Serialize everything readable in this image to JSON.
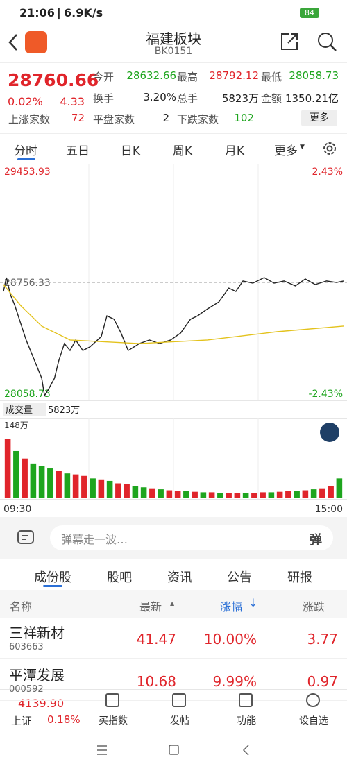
{
  "status_bar": {
    "time": "21:06",
    "speed": "6.9K/s",
    "battery": "84"
  },
  "header": {
    "title": "福建板块",
    "code": "BK0151"
  },
  "quote": {
    "price": "28760.66",
    "change_pct": "0.02%",
    "change": "4.33",
    "rows": [
      [
        {
          "label": "今开",
          "value": "28632.66"
        },
        {
          "label": "最高",
          "value": "28792.12"
        },
        {
          "label": "最低",
          "value": "28058.73"
        }
      ],
      [
        {
          "label": "换手",
          "value": "3.20%"
        },
        {
          "label": "总手",
          "value": "5823万"
        },
        {
          "label": "金额",
          "value": "1350.21亿"
        }
      ]
    ],
    "breadth": [
      {
        "label": "上涨家数",
        "value": "72"
      },
      {
        "label": "平盘家数",
        "value": "2"
      },
      {
        "label": "下跌家数",
        "value": "102"
      }
    ],
    "more": "更多"
  },
  "chart_tabs": [
    "分时",
    "五日",
    "日K",
    "周K",
    "月K",
    "更多"
  ],
  "chart_data": [
    {
      "type": "line",
      "xlim": [
        0,
        240
      ],
      "ylim": [
        28058.73,
        29453.93
      ],
      "yticks": [
        29453.93,
        28756.33,
        28058.73
      ],
      "y2lim": [
        -2.43,
        2.43
      ],
      "y2ticks": [
        {
          "value": 2.43,
          "label": "2.43%"
        },
        {
          "value": -2.43,
          "label": "-2.43%"
        }
      ],
      "xticks": [
        {
          "value": 0,
          "label": "09:30"
        },
        {
          "value": 240,
          "label": "15:00"
        }
      ],
      "series": [
        {
          "color": "#222222",
          "x": [
            0,
            2,
            5,
            8,
            12,
            16,
            20,
            23,
            27,
            29,
            32,
            36,
            39,
            43,
            47,
            51,
            56,
            61,
            69,
            73,
            78,
            83,
            88,
            96,
            103,
            110,
            118,
            125,
            132,
            137,
            144,
            152,
            159,
            164,
            169,
            176,
            184,
            191,
            198,
            206,
            213,
            220,
            228,
            235,
            240
          ],
          "values": [
            28703,
            28785,
            28682,
            28621,
            28518,
            28416,
            28334,
            28272,
            28190,
            28087,
            28128,
            28190,
            28293,
            28395,
            28354,
            28416,
            28354,
            28375,
            28436,
            28559,
            28539,
            28457,
            28354,
            28395,
            28416,
            28395,
            28416,
            28457,
            28539,
            28559,
            28600,
            28641,
            28723,
            28703,
            28765,
            28752,
            28785,
            28752,
            28765,
            28736,
            28777,
            28744,
            28765,
            28756,
            28765
          ]
        },
        {
          "color": "#e3c21c",
          "x": [
            0,
            12,
            27,
            47,
            96,
            144,
            193,
            240
          ],
          "values": [
            28744,
            28621,
            28498,
            28416,
            28395,
            28416,
            28465,
            28498
          ]
        }
      ]
    },
    {
      "type": "bar",
      "title": "成交量",
      "subtitle": "5823万",
      "ylim": [
        0,
        148
      ],
      "yticks": [
        {
          "value": 148,
          "label": "148万"
        }
      ],
      "values": [
        120,
        95,
        80,
        70,
        65,
        60,
        55,
        50,
        48,
        45,
        40,
        38,
        35,
        30,
        28,
        25,
        22,
        20,
        18,
        16,
        15,
        14,
        13,
        12,
        12,
        11,
        10,
        10,
        10,
        11,
        12,
        12,
        13,
        14,
        15,
        16,
        18,
        20,
        25,
        40
      ],
      "colors": [
        "#e0252b",
        "#1ea51e",
        "#e0252b",
        "#1ea51e",
        "#1ea51e",
        "#1ea51e",
        "#e0252b",
        "#1ea51e",
        "#e0252b",
        "#e0252b",
        "#1ea51e",
        "#e0252b",
        "#1ea51e",
        "#e0252b",
        "#e0252b",
        "#1ea51e",
        "#1ea51e",
        "#e0252b",
        "#1ea51e",
        "#e0252b",
        "#e0252b",
        "#1ea51e",
        "#e0252b",
        "#1ea51e",
        "#e0252b",
        "#1ea51e",
        "#e0252b",
        "#e0252b",
        "#1ea51e",
        "#e0252b",
        "#e0252b",
        "#1ea51e",
        "#e0252b",
        "#e0252b",
        "#1ea51e",
        "#e0252b",
        "#1ea51e",
        "#e0252b",
        "#e0252b",
        "#1ea51e"
      ]
    }
  ],
  "comment_placeholder": "弹幕走一波…",
  "comment_button": "弹",
  "section_tabs": [
    "成份股",
    "股吧",
    "资讯",
    "公告",
    "研报"
  ],
  "table": {
    "columns": [
      "名称",
      "最新",
      "涨幅",
      "涨跌"
    ],
    "rows": [
      {
        "name": "三祥新材",
        "code": "603663",
        "price": "41.47",
        "change_pct": "10.00%",
        "change": "3.77"
      },
      {
        "name": "平潭发展",
        "code": "000592",
        "price": "10.68",
        "change_pct": "9.99%",
        "change": "0.97"
      }
    ]
  },
  "index": {
    "value": "4139.90",
    "name": "上证",
    "change_pct": "0.18%"
  },
  "toolbar": [
    "买指数",
    "发帖",
    "功能",
    "设自选"
  ]
}
